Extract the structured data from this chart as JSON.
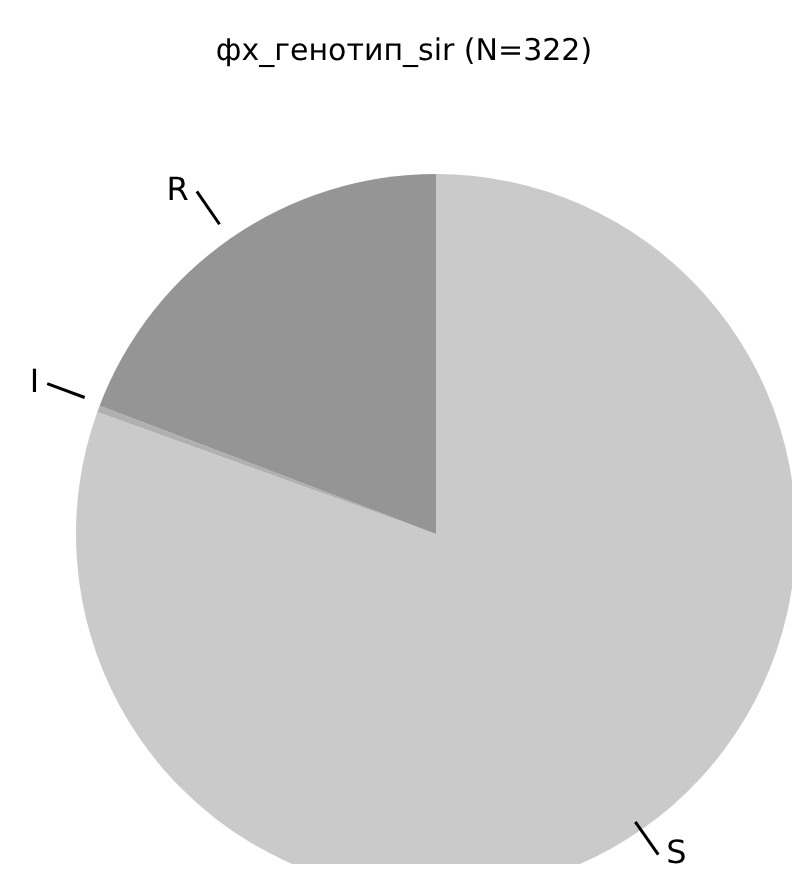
{
  "chart_data": {
    "type": "pie",
    "title": "фх_генотип_sir (N=322)",
    "categories": [
      "S",
      "I",
      "R"
    ],
    "values": [
      80.5,
      0.3,
      19.2
    ],
    "colors": [
      "#cacaca",
      "#b0b0b0",
      "#959595"
    ]
  }
}
